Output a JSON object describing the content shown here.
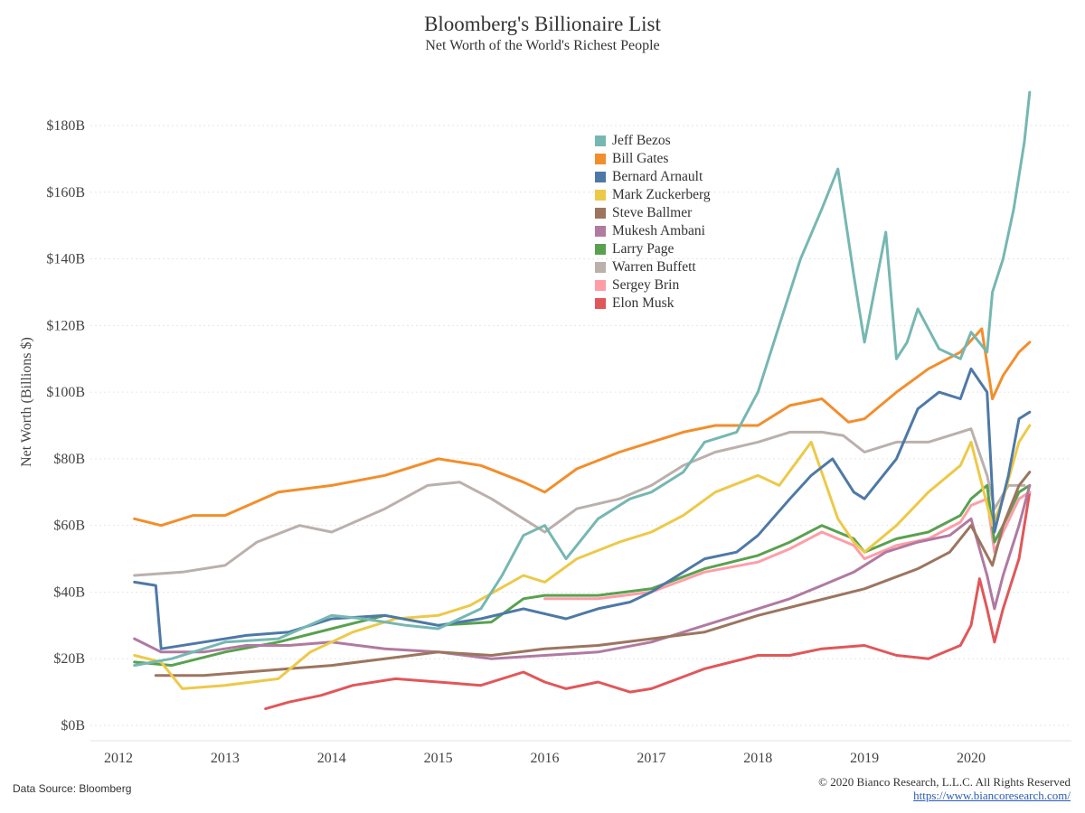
{
  "chart_data": {
    "type": "line",
    "title": "Bloomberg's Billionaire List",
    "subtitle": "Net Worth of the World's Richest People",
    "ylabel": "Net Worth (Billions $)",
    "xlabel": "",
    "ylim": [
      0,
      190
    ],
    "xlim": [
      2011.8,
      2020.7
    ],
    "yticks": [
      "$0B",
      "$20B",
      "$40B",
      "$60B",
      "$80B",
      "$100B",
      "$120B",
      "$140B",
      "$160B",
      "$180B"
    ],
    "xticks": [
      "2012",
      "2013",
      "2014",
      "2015",
      "2016",
      "2017",
      "2018",
      "2019",
      "2020"
    ],
    "legend_position": "top-center",
    "grid": "horizontal dotted",
    "series": [
      {
        "name": "Jeff Bezos",
        "color": "#76b7b2",
        "x": [
          2012.15,
          2012.5,
          2013.0,
          2013.5,
          2014.0,
          2014.3,
          2014.7,
          2015.0,
          2015.4,
          2015.6,
          2015.8,
          2016.0,
          2016.2,
          2016.5,
          2016.8,
          2017.0,
          2017.3,
          2017.5,
          2017.8,
          2018.0,
          2018.2,
          2018.4,
          2018.6,
          2018.75,
          2018.9,
          2019.0,
          2019.2,
          2019.3,
          2019.4,
          2019.5,
          2019.7,
          2019.9,
          2020.0,
          2020.15,
          2020.2,
          2020.3,
          2020.4,
          2020.5,
          2020.55
        ],
        "y": [
          18,
          20,
          25,
          26,
          33,
          32,
          30,
          29,
          35,
          45,
          57,
          60,
          50,
          62,
          68,
          70,
          76,
          85,
          88,
          100,
          120,
          140,
          155,
          167,
          135,
          115,
          148,
          110,
          115,
          125,
          113,
          110,
          118,
          112,
          130,
          140,
          155,
          175,
          190
        ]
      },
      {
        "name": "Bill Gates",
        "color": "#f28e2b",
        "x": [
          2012.15,
          2012.4,
          2012.7,
          2013.0,
          2013.5,
          2014.0,
          2014.5,
          2015.0,
          2015.4,
          2015.8,
          2016.0,
          2016.3,
          2016.7,
          2017.0,
          2017.3,
          2017.6,
          2018.0,
          2018.3,
          2018.6,
          2018.85,
          2019.0,
          2019.3,
          2019.6,
          2019.9,
          2020.1,
          2020.2,
          2020.3,
          2020.45,
          2020.55
        ],
        "y": [
          62,
          60,
          63,
          63,
          70,
          72,
          75,
          80,
          78,
          73,
          70,
          77,
          82,
          85,
          88,
          90,
          90,
          96,
          98,
          91,
          92,
          100,
          107,
          112,
          119,
          98,
          105,
          112,
          115
        ]
      },
      {
        "name": "Bernard Arnault",
        "color": "#4e79a7",
        "x": [
          2012.15,
          2012.35,
          2012.4,
          2012.8,
          2013.2,
          2013.6,
          2014.0,
          2014.5,
          2015.0,
          2015.4,
          2015.8,
          2016.2,
          2016.5,
          2016.8,
          2017.0,
          2017.5,
          2017.8,
          2018.0,
          2018.3,
          2018.5,
          2018.7,
          2018.9,
          2019.0,
          2019.3,
          2019.5,
          2019.7,
          2019.9,
          2020.0,
          2020.15,
          2020.22,
          2020.35,
          2020.45,
          2020.55
        ],
        "y": [
          43,
          42,
          23,
          25,
          27,
          28,
          32,
          33,
          30,
          32,
          35,
          32,
          35,
          37,
          40,
          50,
          52,
          57,
          68,
          75,
          80,
          70,
          68,
          80,
          95,
          100,
          98,
          107,
          100,
          58,
          75,
          92,
          94
        ]
      },
      {
        "name": "Mark Zuckerberg",
        "color": "#edc948",
        "x": [
          2012.15,
          2012.4,
          2012.6,
          2013.0,
          2013.5,
          2013.8,
          2014.2,
          2014.6,
          2015.0,
          2015.3,
          2015.8,
          2016.0,
          2016.3,
          2016.7,
          2017.0,
          2017.3,
          2017.6,
          2018.0,
          2018.2,
          2018.5,
          2018.75,
          2018.9,
          2019.0,
          2019.3,
          2019.6,
          2019.9,
          2020.0,
          2020.2,
          2020.3,
          2020.45,
          2020.55
        ],
        "y": [
          21,
          19,
          11,
          12,
          14,
          22,
          28,
          32,
          33,
          36,
          45,
          43,
          50,
          55,
          58,
          63,
          70,
          75,
          72,
          85,
          62,
          55,
          52,
          60,
          70,
          78,
          85,
          60,
          68,
          85,
          90
        ]
      },
      {
        "name": "Steve Ballmer",
        "color": "#9c755f",
        "x": [
          2012.35,
          2012.8,
          2013.2,
          2013.6,
          2014.0,
          2014.5,
          2015.0,
          2015.5,
          2016.0,
          2016.5,
          2017.0,
          2017.5,
          2018.0,
          2018.5,
          2019.0,
          2019.5,
          2019.8,
          2020.0,
          2020.2,
          2020.3,
          2020.45,
          2020.55
        ],
        "y": [
          15,
          15,
          16,
          17,
          18,
          20,
          22,
          21,
          23,
          24,
          26,
          28,
          33,
          37,
          41,
          47,
          52,
          60,
          48,
          60,
          72,
          76
        ]
      },
      {
        "name": "Mukesh Ambani",
        "color": "#b07aa1",
        "x": [
          2012.15,
          2012.4,
          2012.8,
          2013.2,
          2013.6,
          2014.0,
          2014.5,
          2015.0,
          2015.5,
          2016.0,
          2016.5,
          2017.0,
          2017.5,
          2018.0,
          2018.3,
          2018.6,
          2018.9,
          2019.2,
          2019.5,
          2019.8,
          2020.0,
          2020.15,
          2020.22,
          2020.3,
          2020.45,
          2020.55
        ],
        "y": [
          26,
          22,
          22,
          24,
          24,
          25,
          23,
          22,
          20,
          21,
          22,
          25,
          30,
          35,
          38,
          42,
          46,
          52,
          55,
          57,
          62,
          45,
          35,
          45,
          60,
          72
        ]
      },
      {
        "name": "Larry Page",
        "color": "#59a14f",
        "x": [
          2012.15,
          2012.5,
          2013.0,
          2013.5,
          2014.0,
          2014.5,
          2015.0,
          2015.5,
          2015.8,
          2016.0,
          2016.5,
          2017.0,
          2017.5,
          2018.0,
          2018.3,
          2018.6,
          2018.9,
          2019.0,
          2019.3,
          2019.6,
          2019.9,
          2020.0,
          2020.15,
          2020.22,
          2020.3,
          2020.45,
          2020.55
        ],
        "y": [
          19,
          18,
          22,
          25,
          29,
          33,
          30,
          31,
          38,
          39,
          39,
          41,
          47,
          51,
          55,
          60,
          56,
          52,
          56,
          58,
          63,
          68,
          72,
          55,
          60,
          70,
          72
        ]
      },
      {
        "name": "Warren Buffett",
        "color": "#bab0ac",
        "x": [
          2012.15,
          2012.6,
          2013.0,
          2013.3,
          2013.7,
          2014.0,
          2014.5,
          2014.9,
          2015.2,
          2015.5,
          2015.8,
          2016.0,
          2016.3,
          2016.7,
          2017.0,
          2017.3,
          2017.6,
          2018.0,
          2018.3,
          2018.6,
          2018.8,
          2019.0,
          2019.3,
          2019.6,
          2019.9,
          2020.0,
          2020.15,
          2020.22,
          2020.35,
          2020.5
        ],
        "y": [
          45,
          46,
          48,
          55,
          60,
          58,
          65,
          72,
          73,
          68,
          62,
          58,
          65,
          68,
          72,
          78,
          82,
          85,
          88,
          88,
          87,
          82,
          85,
          85,
          88,
          89,
          75,
          65,
          72,
          72
        ]
      },
      {
        "name": "Sergey Brin",
        "color": "#ff9da7",
        "x": [
          2016.0,
          2016.5,
          2017.0,
          2017.5,
          2018.0,
          2018.3,
          2018.6,
          2018.9,
          2019.0,
          2019.3,
          2019.6,
          2019.9,
          2020.0,
          2020.15,
          2020.22,
          2020.3,
          2020.45,
          2020.55
        ],
        "y": [
          38,
          38,
          40,
          46,
          49,
          53,
          58,
          54,
          50,
          54,
          56,
          61,
          66,
          68,
          52,
          58,
          68,
          70
        ]
      },
      {
        "name": "Elon Musk",
        "color": "#e15759",
        "x": [
          2013.38,
          2013.6,
          2013.9,
          2014.2,
          2014.6,
          2015.0,
          2015.4,
          2015.8,
          2016.0,
          2016.2,
          2016.5,
          2016.8,
          2017.0,
          2017.5,
          2018.0,
          2018.3,
          2018.6,
          2019.0,
          2019.3,
          2019.6,
          2019.9,
          2020.0,
          2020.08,
          2020.15,
          2020.22,
          2020.3,
          2020.45,
          2020.55
        ],
        "y": [
          5,
          7,
          9,
          12,
          14,
          13,
          12,
          16,
          13,
          11,
          13,
          10,
          11,
          17,
          21,
          21,
          23,
          24,
          21,
          20,
          24,
          30,
          44,
          35,
          25,
          35,
          50,
          70
        ]
      }
    ]
  },
  "footer": {
    "source": "Data Source: Bloomberg",
    "copyright": "© 2020 Bianco Research, L.L.C. All Rights Reserved",
    "url": "https://www.biancoresearch.com/"
  }
}
